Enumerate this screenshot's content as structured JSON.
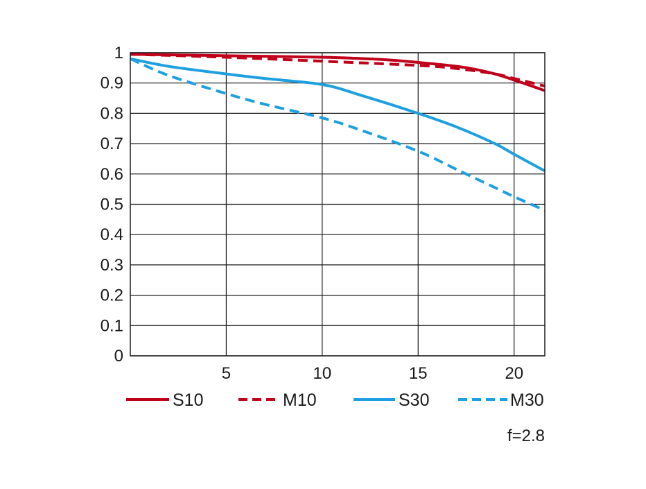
{
  "chart_data": {
    "type": "line",
    "title": "",
    "xlabel": "",
    "ylabel": "",
    "xlim": [
      0,
      21.6
    ],
    "ylim": [
      0,
      1
    ],
    "x_ticks": [
      5,
      10,
      15,
      20
    ],
    "y_ticks": [
      0,
      0.1,
      0.2,
      0.3,
      0.4,
      0.5,
      0.6,
      0.7,
      0.8,
      0.9,
      1
    ],
    "x_tick_labels": [
      "5",
      "10",
      "15",
      "20"
    ],
    "y_tick_labels": [
      "0",
      "0.1",
      "0.2",
      "0.3",
      "0.4",
      "0.5",
      "0.6",
      "0.7",
      "0.8",
      "0.9",
      "1"
    ],
    "grid": true,
    "legend_position": "bottom",
    "annotation": "f=2.8",
    "colors": {
      "red": "#c0001a",
      "blue": "#1ea0e0",
      "grid": "#1a1a1a"
    },
    "series": [
      {
        "name": "S10",
        "color": "#c0001a",
        "dash": false,
        "x": [
          0,
          5,
          10,
          13,
          15,
          17,
          18,
          19,
          20,
          21.6
        ],
        "y": [
          0.995,
          0.99,
          0.985,
          0.978,
          0.968,
          0.955,
          0.945,
          0.93,
          0.91,
          0.875
        ]
      },
      {
        "name": "M10",
        "color": "#c0001a",
        "dash": true,
        "x": [
          0,
          5,
          10,
          15,
          17,
          19,
          20,
          21.6
        ],
        "y": [
          0.995,
          0.985,
          0.972,
          0.958,
          0.948,
          0.93,
          0.915,
          0.89
        ]
      },
      {
        "name": "S30",
        "color": "#1ea0e0",
        "dash": false,
        "x": [
          0,
          2,
          5,
          7,
          10,
          12,
          15,
          17,
          19,
          20,
          21.6
        ],
        "y": [
          0.98,
          0.955,
          0.93,
          0.915,
          0.895,
          0.86,
          0.8,
          0.755,
          0.7,
          0.665,
          0.61
        ]
      },
      {
        "name": "M30",
        "color": "#1ea0e0",
        "dash": true,
        "x": [
          0,
          2,
          5,
          7,
          10,
          12,
          15,
          17,
          19,
          20,
          21.6
        ],
        "y": [
          0.98,
          0.925,
          0.865,
          0.83,
          0.785,
          0.745,
          0.675,
          0.615,
          0.555,
          0.525,
          0.48
        ]
      }
    ]
  }
}
